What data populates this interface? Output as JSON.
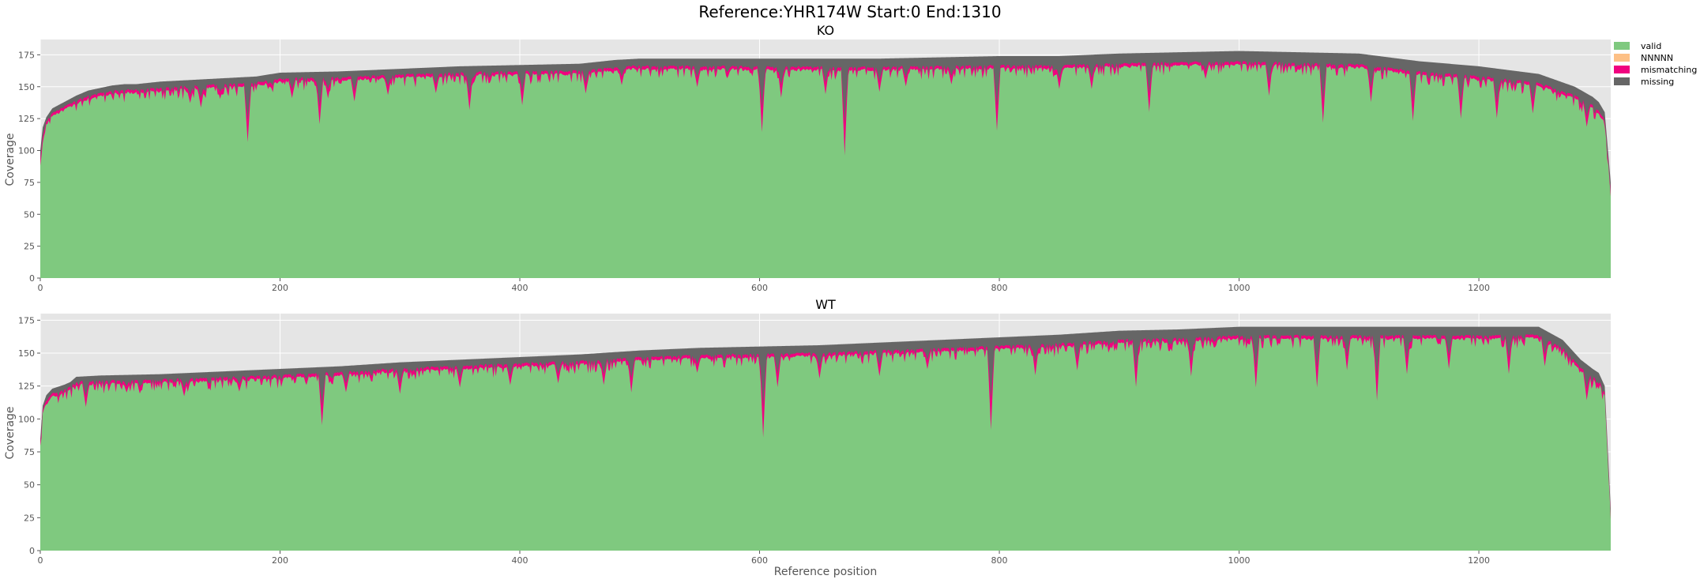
{
  "figure": {
    "title": "Reference:YHR174W  Start:0  End:1310",
    "background": "#ffffff",
    "plot_background": "#e5e5e5",
    "grid_color": "#ffffff"
  },
  "legend": {
    "placement": "right, top",
    "entries": [
      {
        "name": "valid",
        "color": "#7fc97f"
      },
      {
        "name": "NNNNN",
        "color": "#fdc086"
      },
      {
        "name": "mismatching",
        "color": "#f0027f"
      },
      {
        "name": "missing",
        "color": "#666666"
      }
    ]
  },
  "chart_data": [
    {
      "type": "area",
      "stacked": true,
      "title": "KO",
      "xlabel": "",
      "ylabel": "Coverage",
      "xlim": [
        0,
        1310
      ],
      "ylim": [
        0,
        187
      ],
      "xticks": [
        0,
        200,
        400,
        600,
        800,
        1000,
        1200
      ],
      "yticks": [
        0,
        25,
        50,
        75,
        100,
        125,
        150,
        175
      ],
      "grid": true,
      "total_coverage": {
        "x": [
          0,
          2,
          5,
          10,
          20,
          30,
          40,
          50,
          60,
          70,
          80,
          100,
          120,
          140,
          160,
          180,
          200,
          250,
          300,
          350,
          400,
          450,
          480,
          500,
          550,
          600,
          650,
          700,
          750,
          800,
          850,
          900,
          950,
          1000,
          1050,
          1100,
          1150,
          1200,
          1250,
          1280,
          1295,
          1300,
          1305,
          1310
        ],
        "y": [
          100,
          118,
          126,
          133,
          138,
          143,
          147,
          149,
          151,
          152,
          152,
          154,
          155,
          156,
          157,
          158,
          161,
          162,
          164,
          166,
          167,
          168,
          171,
          172,
          172,
          172,
          172,
          172,
          173,
          174,
          174,
          176,
          177,
          178,
          177,
          176,
          170,
          166,
          160,
          150,
          142,
          138,
          130,
          75
        ]
      },
      "missing_depth": {
        "x": [
          0,
          100,
          300,
          500,
          700,
          900,
          1100,
          1200,
          1300,
          1310
        ],
        "y": [
          3,
          4,
          4,
          5,
          6,
          7,
          8,
          7,
          6,
          6
        ]
      },
      "mismatch_depth": 2,
      "valid_dips": [
        {
          "x": 125,
          "depth": 12
        },
        {
          "x": 134,
          "depth": 16
        },
        {
          "x": 150,
          "depth": 10
        },
        {
          "x": 173,
          "depth": 45
        },
        {
          "x": 210,
          "depth": 14
        },
        {
          "x": 233,
          "depth": 35
        },
        {
          "x": 240,
          "depth": 15
        },
        {
          "x": 262,
          "depth": 18
        },
        {
          "x": 290,
          "depth": 14
        },
        {
          "x": 330,
          "depth": 14
        },
        {
          "x": 358,
          "depth": 28
        },
        {
          "x": 402,
          "depth": 25
        },
        {
          "x": 455,
          "depth": 17
        },
        {
          "x": 485,
          "depth": 13
        },
        {
          "x": 548,
          "depth": 15
        },
        {
          "x": 602,
          "depth": 50
        },
        {
          "x": 618,
          "depth": 23
        },
        {
          "x": 655,
          "depth": 20
        },
        {
          "x": 671,
          "depth": 68
        },
        {
          "x": 700,
          "depth": 18
        },
        {
          "x": 722,
          "depth": 14
        },
        {
          "x": 760,
          "depth": 13
        },
        {
          "x": 798,
          "depth": 50
        },
        {
          "x": 850,
          "depth": 17
        },
        {
          "x": 877,
          "depth": 18
        },
        {
          "x": 925,
          "depth": 37
        },
        {
          "x": 972,
          "depth": 12
        },
        {
          "x": 1025,
          "depth": 25
        },
        {
          "x": 1070,
          "depth": 45
        },
        {
          "x": 1110,
          "depth": 27
        },
        {
          "x": 1145,
          "depth": 38
        },
        {
          "x": 1185,
          "depth": 33
        },
        {
          "x": 1215,
          "depth": 30
        },
        {
          "x": 1245,
          "depth": 23
        },
        {
          "x": 1290,
          "depth": 18
        }
      ]
    },
    {
      "type": "area",
      "stacked": true,
      "title": "WT",
      "xlabel": "Reference position",
      "ylabel": "Coverage",
      "xlim": [
        0,
        1310
      ],
      "ylim": [
        0,
        180
      ],
      "xticks": [
        0,
        200,
        400,
        600,
        800,
        1000,
        1200
      ],
      "yticks": [
        0,
        25,
        50,
        75,
        100,
        125,
        150,
        175
      ],
      "grid": true,
      "total_coverage": {
        "x": [
          0,
          2,
          5,
          10,
          20,
          25,
          30,
          50,
          100,
          150,
          200,
          250,
          300,
          350,
          400,
          450,
          500,
          550,
          600,
          650,
          700,
          750,
          800,
          850,
          900,
          950,
          1000,
          1050,
          1100,
          1150,
          1200,
          1250,
          1270,
          1285,
          1295,
          1300,
          1305,
          1310
        ],
        "y": [
          85,
          110,
          118,
          123,
          126,
          128,
          132,
          133,
          134,
          136,
          138,
          140,
          143,
          145,
          147,
          149,
          152,
          154,
          155,
          156,
          158,
          160,
          162,
          164,
          167,
          168,
          170,
          170,
          170,
          170,
          170,
          170,
          160,
          145,
          138,
          135,
          125,
          32
        ]
      },
      "missing_depth": {
        "x": [
          0,
          200,
          400,
          600,
          800,
          1000,
          1200,
          1310
        ],
        "y": [
          3,
          4,
          4,
          5,
          6,
          6,
          6,
          5
        ]
      },
      "mismatch_depth": 2,
      "valid_dips": [
        {
          "x": 38,
          "depth": 18
        },
        {
          "x": 72,
          "depth": 8
        },
        {
          "x": 120,
          "depth": 12
        },
        {
          "x": 166,
          "depth": 10
        },
        {
          "x": 235,
          "depth": 38
        },
        {
          "x": 255,
          "depth": 14
        },
        {
          "x": 300,
          "depth": 18
        },
        {
          "x": 350,
          "depth": 15
        },
        {
          "x": 392,
          "depth": 15
        },
        {
          "x": 432,
          "depth": 15
        },
        {
          "x": 470,
          "depth": 18
        },
        {
          "x": 493,
          "depth": 25
        },
        {
          "x": 548,
          "depth": 12
        },
        {
          "x": 603,
          "depth": 62
        },
        {
          "x": 615,
          "depth": 24
        },
        {
          "x": 650,
          "depth": 18
        },
        {
          "x": 700,
          "depth": 18
        },
        {
          "x": 740,
          "depth": 14
        },
        {
          "x": 793,
          "depth": 62
        },
        {
          "x": 830,
          "depth": 22
        },
        {
          "x": 865,
          "depth": 20
        },
        {
          "x": 914,
          "depth": 35
        },
        {
          "x": 960,
          "depth": 28
        },
        {
          "x": 1014,
          "depth": 38
        },
        {
          "x": 1065,
          "depth": 38
        },
        {
          "x": 1090,
          "depth": 25
        },
        {
          "x": 1115,
          "depth": 48
        },
        {
          "x": 1140,
          "depth": 28
        },
        {
          "x": 1175,
          "depth": 24
        },
        {
          "x": 1225,
          "depth": 28
        },
        {
          "x": 1255,
          "depth": 20
        },
        {
          "x": 1290,
          "depth": 20
        }
      ]
    }
  ]
}
